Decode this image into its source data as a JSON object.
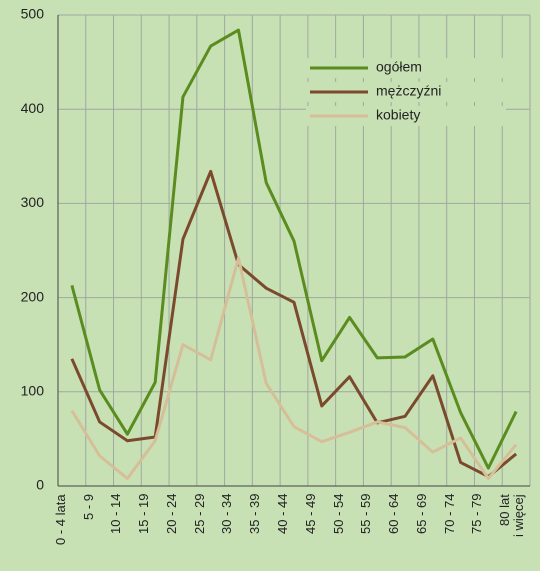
{
  "chart_data": {
    "type": "line",
    "categories": [
      "0 - 4 lata",
      "5 - 9",
      "10 - 14",
      "15 - 19",
      "20 - 24",
      "25 - 29",
      "30 - 34",
      "35 - 39",
      "40 - 44",
      "45 - 49",
      "50 - 54",
      "55 - 59",
      "60 - 64",
      "65 - 69",
      "70 - 74",
      "75 - 79",
      "80 lat\ni więcej"
    ],
    "series": [
      {
        "name": "ogółem",
        "color": "#5b8c1f",
        "values": [
          213,
          102,
          55,
          110,
          413,
          467,
          484,
          322,
          260,
          133,
          179,
          136,
          137,
          156,
          78,
          19,
          79
        ]
      },
      {
        "name": "mężczyźni",
        "color": "#7b4a2c",
        "values": [
          135,
          68,
          48,
          52,
          262,
          334,
          235,
          210,
          195,
          85,
          116,
          67,
          74,
          117,
          25,
          10,
          34
        ]
      },
      {
        "name": "kobiety",
        "color": "#d6bf98",
        "values": [
          80,
          32,
          8,
          48,
          150,
          134,
          242,
          109,
          63,
          47,
          57,
          68,
          62,
          36,
          51,
          8,
          44
        ]
      }
    ],
    "ylim": [
      0,
      500
    ],
    "yticks": [
      0,
      100,
      200,
      300,
      400,
      500
    ],
    "grid": true,
    "legend": "upper right"
  }
}
